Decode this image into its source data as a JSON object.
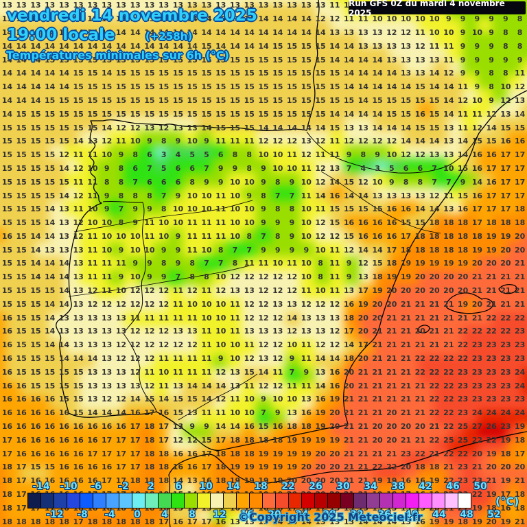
{
  "header": {
    "date_line": "vendredi 14 novembre 2025",
    "time_line": "19:00 locale",
    "offset": "(+258h)",
    "subtitle": "Températures minimales sur 6h (°C)",
    "run_info": "Run GFS 0Z du mardi 4 novembre 2025"
  },
  "footer": {
    "copyright": "©Copyright 2025 Meteociel.fr"
  },
  "colors": {
    "header_text": "#2fd0fa",
    "header_outline": "#0a4d9e",
    "legend_label_text": "#6ae4ff",
    "copyright_text": "#173f7c",
    "number_text": "#333333",
    "run_box_bg": "#06060e"
  },
  "legend": {
    "unit_label": "(°C)",
    "start_value": -16,
    "step": 2,
    "top_labels": [
      -14,
      -10,
      -6,
      -2,
      2,
      6,
      10,
      14,
      18,
      22,
      26,
      30,
      34,
      38,
      42,
      46,
      50
    ],
    "bottom_labels": [
      -12,
      -8,
      -4,
      0,
      4,
      8,
      12,
      16,
      20,
      24,
      28,
      32,
      36,
      40,
      44,
      48,
      52
    ],
    "colors": [
      "#0e1d4d",
      "#143076",
      "#1d41a8",
      "#2447e0",
      "#0d5cff",
      "#2f80ff",
      "#47a3ff",
      "#5cc4ff",
      "#6ceef2",
      "#6fedbb",
      "#44d952",
      "#2fe312",
      "#9ade00",
      "#f2f22a",
      "#f8f2b2",
      "#f0d04f",
      "#ffa502",
      "#ff8c00",
      "#ff6a3a",
      "#f74c2c",
      "#e82600",
      "#d40000",
      "#b80000",
      "#960000",
      "#7a0022",
      "#6f2b70",
      "#913d94",
      "#b332b3",
      "#d127d1",
      "#f11ff1",
      "#ff5cff",
      "#ff8fff",
      "#ffc2ff",
      "#ffffff"
    ]
  },
  "map_grid": {
    "cols": 37,
    "rows": 39,
    "values": [
      [
        13,
        13,
        13,
        13,
        13,
        13,
        13,
        13,
        13,
        13,
        13,
        13,
        13,
        13,
        13,
        13,
        13,
        13,
        13,
        13,
        13,
        13,
        13,
        11,
        11,
        10,
        10,
        10,
        10,
        10,
        9,
        9,
        9,
        9,
        9,
        9,
        8
      ],
      [
        13,
        13,
        13,
        13,
        13,
        13,
        13,
        13,
        13,
        13,
        13,
        13,
        13,
        14,
        14,
        13,
        13,
        14,
        14,
        14,
        14,
        14,
        12,
        12,
        11,
        11,
        10,
        10,
        10,
        10,
        10,
        9,
        9,
        9,
        9,
        9,
        8
      ],
      [
        14,
        14,
        14,
        14,
        14,
        14,
        14,
        14,
        14,
        14,
        14,
        14,
        14,
        14,
        14,
        14,
        14,
        14,
        14,
        14,
        14,
        14,
        14,
        13,
        13,
        13,
        13,
        12,
        12,
        11,
        10,
        10,
        9,
        10,
        9,
        8,
        8
      ],
      [
        14,
        14,
        14,
        14,
        14,
        14,
        14,
        14,
        14,
        14,
        14,
        14,
        14,
        14,
        15,
        14,
        14,
        14,
        14,
        15,
        15,
        15,
        15,
        14,
        14,
        13,
        13,
        13,
        13,
        12,
        11,
        11,
        9,
        9,
        9,
        8,
        8
      ],
      [
        14,
        14,
        14,
        15,
        15,
        15,
        15,
        15,
        15,
        15,
        15,
        15,
        15,
        15,
        15,
        15,
        15,
        15,
        15,
        15,
        15,
        15,
        15,
        14,
        14,
        14,
        14,
        13,
        13,
        13,
        13,
        11,
        9,
        9,
        9,
        9,
        9
      ],
      [
        14,
        14,
        14,
        14,
        14,
        15,
        15,
        14,
        15,
        15,
        15,
        15,
        15,
        15,
        15,
        15,
        15,
        15,
        15,
        15,
        15,
        15,
        15,
        15,
        14,
        14,
        14,
        14,
        13,
        13,
        14,
        12,
        9,
        9,
        8,
        8,
        11
      ],
      [
        14,
        14,
        14,
        14,
        14,
        15,
        15,
        15,
        15,
        15,
        15,
        15,
        15,
        15,
        15,
        15,
        15,
        15,
        15,
        15,
        15,
        15,
        15,
        15,
        14,
        14,
        14,
        14,
        14,
        15,
        14,
        14,
        11,
        9,
        8,
        10,
        12
      ],
      [
        14,
        14,
        14,
        15,
        15,
        15,
        15,
        15,
        15,
        15,
        15,
        15,
        15,
        15,
        15,
        15,
        15,
        15,
        15,
        15,
        15,
        15,
        15,
        15,
        15,
        14,
        15,
        15,
        15,
        15,
        15,
        14,
        12,
        10,
        9,
        12,
        13
      ],
      [
        14,
        15,
        15,
        15,
        15,
        15,
        15,
        15,
        15,
        15,
        15,
        15,
        15,
        15,
        15,
        15,
        15,
        15,
        15,
        15,
        15,
        15,
        15,
        14,
        14,
        14,
        14,
        15,
        15,
        16,
        15,
        14,
        11,
        11,
        12,
        13,
        14
      ],
      [
        15,
        15,
        15,
        15,
        15,
        15,
        15,
        14,
        12,
        12,
        13,
        12,
        13,
        13,
        14,
        15,
        15,
        15,
        14,
        14,
        14,
        14,
        14,
        15,
        13,
        13,
        14,
        14,
        14,
        15,
        15,
        13,
        11,
        12,
        14,
        15,
        15
      ],
      [
        15,
        15,
        15,
        15,
        15,
        14,
        13,
        12,
        11,
        10,
        9,
        8,
        9,
        10,
        9,
        11,
        11,
        11,
        12,
        12,
        12,
        13,
        12,
        11,
        12,
        12,
        12,
        12,
        14,
        14,
        14,
        13,
        14,
        15,
        15,
        16,
        16
      ],
      [
        15,
        15,
        15,
        15,
        12,
        11,
        11,
        10,
        9,
        8,
        6,
        3,
        4,
        5,
        5,
        6,
        8,
        8,
        10,
        10,
        11,
        12,
        11,
        11,
        9,
        8,
        9,
        10,
        12,
        12,
        13,
        13,
        14,
        16,
        16,
        17,
        17
      ],
      [
        15,
        15,
        15,
        15,
        14,
        12,
        10,
        9,
        8,
        6,
        7,
        5,
        6,
        6,
        7,
        9,
        9,
        8,
        9,
        10,
        10,
        11,
        12,
        13,
        7,
        4,
        3,
        5,
        6,
        6,
        7,
        10,
        15,
        16,
        17,
        17,
        17
      ],
      [
        15,
        15,
        15,
        15,
        15,
        11,
        11,
        8,
        8,
        7,
        6,
        6,
        6,
        8,
        9,
        9,
        10,
        10,
        9,
        8,
        9,
        10,
        12,
        14,
        15,
        12,
        10,
        9,
        8,
        8,
        7,
        7,
        9,
        14,
        16,
        17,
        17
      ],
      [
        15,
        15,
        15,
        15,
        14,
        12,
        11,
        9,
        8,
        8,
        8,
        7,
        9,
        10,
        10,
        11,
        10,
        9,
        8,
        7,
        7,
        11,
        14,
        16,
        14,
        14,
        13,
        13,
        13,
        13,
        12,
        11,
        15,
        16,
        17,
        17,
        17
      ],
      [
        15,
        15,
        15,
        14,
        13,
        11,
        10,
        9,
        7,
        9,
        9,
        8,
        10,
        10,
        10,
        11,
        10,
        10,
        9,
        8,
        8,
        10,
        11,
        15,
        15,
        15,
        15,
        16,
        16,
        14,
        14,
        13,
        16,
        17,
        17,
        17,
        18
      ],
      [
        15,
        15,
        15,
        14,
        13,
        12,
        10,
        10,
        8,
        9,
        11,
        10,
        10,
        11,
        11,
        11,
        10,
        10,
        9,
        9,
        9,
        10,
        12,
        15,
        16,
        16,
        16,
        16,
        15,
        15,
        18,
        18,
        18,
        17,
        18,
        18,
        18
      ],
      [
        16,
        15,
        14,
        14,
        13,
        12,
        11,
        10,
        10,
        10,
        11,
        10,
        9,
        11,
        11,
        11,
        10,
        8,
        7,
        8,
        9,
        10,
        12,
        12,
        15,
        16,
        16,
        16,
        17,
        18,
        18,
        18,
        18,
        18,
        19,
        19,
        20
      ],
      [
        15,
        15,
        14,
        13,
        13,
        13,
        11,
        10,
        9,
        10,
        10,
        9,
        9,
        11,
        10,
        8,
        7,
        7,
        9,
        9,
        9,
        9,
        10,
        11,
        12,
        14,
        14,
        17,
        18,
        18,
        18,
        18,
        18,
        19,
        19,
        20,
        20
      ],
      [
        15,
        15,
        14,
        14,
        14,
        13,
        11,
        11,
        11,
        9,
        9,
        8,
        9,
        8,
        7,
        7,
        8,
        11,
        11,
        10,
        11,
        10,
        8,
        11,
        9,
        12,
        15,
        18,
        19,
        19,
        19,
        19,
        19,
        20,
        20,
        20,
        21
      ],
      [
        15,
        15,
        14,
        14,
        14,
        13,
        11,
        11,
        9,
        10,
        9,
        9,
        7,
        8,
        8,
        10,
        12,
        12,
        12,
        12,
        12,
        10,
        8,
        11,
        9,
        13,
        18,
        19,
        19,
        20,
        20,
        20,
        20,
        21,
        21,
        21,
        21
      ],
      [
        15,
        15,
        15,
        15,
        14,
        13,
        12,
        11,
        10,
        12,
        12,
        12,
        11,
        12,
        11,
        12,
        13,
        13,
        12,
        12,
        12,
        11,
        10,
        11,
        13,
        17,
        19,
        20,
        20,
        20,
        20,
        20,
        20,
        21,
        21,
        21,
        21
      ],
      [
        15,
        15,
        15,
        14,
        14,
        13,
        12,
        12,
        12,
        12,
        12,
        12,
        11,
        10,
        10,
        10,
        11,
        12,
        12,
        13,
        13,
        12,
        12,
        12,
        16,
        19,
        20,
        20,
        21,
        21,
        21,
        21,
        19,
        20,
        21,
        21,
        21
      ],
      [
        16,
        15,
        15,
        14,
        13,
        13,
        13,
        13,
        13,
        11,
        11,
        11,
        11,
        11,
        10,
        10,
        11,
        12,
        12,
        12,
        14,
        13,
        13,
        13,
        18,
        20,
        20,
        21,
        21,
        21,
        21,
        21,
        21,
        21,
        22,
        22,
        22
      ],
      [
        16,
        15,
        15,
        14,
        13,
        13,
        13,
        13,
        13,
        12,
        12,
        12,
        13,
        13,
        11,
        10,
        11,
        13,
        13,
        13,
        12,
        13,
        13,
        12,
        17,
        20,
        21,
        21,
        21,
        20,
        21,
        21,
        22,
        22,
        22,
        22,
        23
      ],
      [
        16,
        15,
        15,
        14,
        14,
        13,
        13,
        13,
        12,
        12,
        12,
        12,
        12,
        12,
        11,
        10,
        10,
        11,
        12,
        12,
        10,
        11,
        12,
        12,
        14,
        17,
        21,
        21,
        21,
        21,
        21,
        21,
        22,
        23,
        23,
        23,
        23
      ],
      [
        16,
        15,
        15,
        15,
        14,
        14,
        14,
        13,
        12,
        12,
        12,
        11,
        11,
        11,
        11,
        9,
        10,
        12,
        13,
        12,
        9,
        11,
        14,
        14,
        18,
        20,
        21,
        21,
        21,
        22,
        22,
        22,
        22,
        23,
        23,
        23,
        23
      ],
      [
        16,
        15,
        15,
        15,
        15,
        15,
        13,
        13,
        13,
        12,
        11,
        10,
        11,
        11,
        11,
        12,
        13,
        15,
        14,
        11,
        7,
        9,
        13,
        16,
        20,
        21,
        21,
        21,
        21,
        22,
        22,
        22,
        23,
        23,
        23,
        23,
        24
      ],
      [
        16,
        16,
        15,
        15,
        15,
        15,
        13,
        13,
        13,
        13,
        12,
        11,
        13,
        14,
        14,
        14,
        13,
        11,
        12,
        12,
        11,
        11,
        14,
        16,
        20,
        21,
        21,
        21,
        21,
        21,
        22,
        22,
        23,
        23,
        23,
        23,
        24
      ],
      [
        16,
        16,
        16,
        16,
        15,
        15,
        13,
        12,
        12,
        14,
        15,
        14,
        15,
        15,
        14,
        12,
        11,
        10,
        9,
        10,
        10,
        13,
        16,
        19,
        21,
        21,
        21,
        21,
        21,
        21,
        22,
        22,
        23,
        23,
        23,
        23,
        23
      ],
      [
        16,
        16,
        16,
        16,
        16,
        15,
        14,
        14,
        14,
        16,
        17,
        16,
        15,
        13,
        11,
        11,
        10,
        10,
        7,
        9,
        13,
        16,
        19,
        20,
        21,
        21,
        21,
        20,
        21,
        21,
        22,
        22,
        23,
        24,
        24,
        24,
        24
      ],
      [
        16,
        16,
        16,
        16,
        16,
        16,
        16,
        16,
        16,
        17,
        18,
        17,
        13,
        9,
        9,
        14,
        14,
        16,
        15,
        16,
        18,
        18,
        19,
        20,
        21,
        21,
        20,
        20,
        20,
        20,
        21,
        22,
        25,
        27,
        26,
        23,
        19
      ],
      [
        17,
        16,
        16,
        16,
        16,
        16,
        16,
        17,
        17,
        17,
        18,
        17,
        12,
        12,
        15,
        17,
        18,
        18,
        18,
        18,
        19,
        19,
        19,
        19,
        21,
        21,
        20,
        20,
        21,
        21,
        22,
        25,
        25,
        22,
        22,
        19,
        18
      ],
      [
        17,
        16,
        16,
        16,
        16,
        16,
        17,
        17,
        17,
        17,
        18,
        18,
        16,
        16,
        17,
        18,
        18,
        18,
        19,
        19,
        19,
        19,
        20,
        20,
        21,
        21,
        21,
        21,
        23,
        22,
        21,
        22,
        22,
        20,
        19,
        18,
        17
      ],
      [
        18,
        17,
        15,
        15,
        16,
        16,
        16,
        16,
        17,
        17,
        18,
        18,
        16,
        16,
        17,
        18,
        19,
        19,
        19,
        19,
        19,
        20,
        20,
        20,
        21,
        21,
        22,
        22,
        20,
        18,
        18,
        21,
        23,
        21,
        20,
        20,
        20
      ],
      [
        18,
        17,
        16,
        16,
        16,
        16,
        16,
        17,
        17,
        18,
        18,
        18,
        14,
        13,
        16,
        18,
        19,
        19,
        19,
        19,
        20,
        20,
        20,
        20,
        21,
        21,
        19,
        19,
        16,
        16,
        19,
        22,
        23,
        23,
        21,
        19,
        21
      ],
      [
        18,
        17,
        16,
        16,
        16,
        16,
        17,
        17,
        17,
        18,
        18,
        18,
        15,
        14,
        16,
        18,
        19,
        19,
        19,
        19,
        20,
        20,
        20,
        20,
        21,
        21,
        19,
        18,
        17,
        16,
        19,
        22,
        23,
        22,
        19,
        17,
        18
      ],
      [
        18,
        17,
        17,
        17,
        18,
        18,
        18,
        18,
        18,
        18,
        18,
        18,
        15,
        14,
        13,
        9,
        10,
        12,
        16,
        18,
        17,
        16,
        17,
        13,
        15,
        15,
        13,
        13,
        13,
        15,
        20,
        21,
        21,
        19,
        18,
        16,
        18
      ],
      [
        18,
        18,
        18,
        18,
        18,
        17,
        18,
        18,
        18,
        18,
        18,
        17,
        16,
        17,
        17,
        16,
        13,
        13,
        13,
        14,
        14,
        14,
        13,
        13,
        13,
        14,
        14,
        14,
        13,
        16,
        19,
        19,
        18,
        19,
        20,
        19,
        21
      ]
    ]
  }
}
